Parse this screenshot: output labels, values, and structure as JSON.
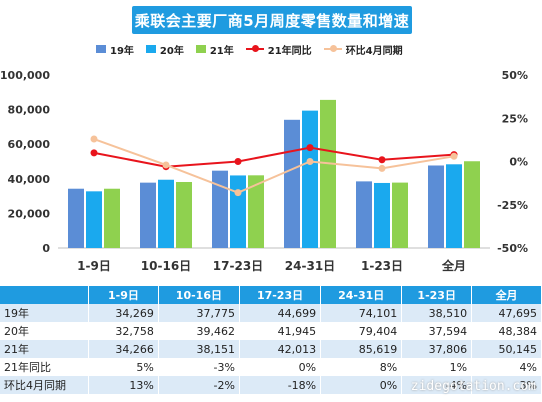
{
  "title": "乘联会主要厂商5月周度零售数量和增速",
  "legend": [
    {
      "label": "19年",
      "kind": "bar",
      "color": "#5b8dd6"
    },
    {
      "label": "20年",
      "kind": "bar",
      "color": "#1aa9ee"
    },
    {
      "label": "21年",
      "kind": "bar",
      "color": "#8fd14f"
    },
    {
      "label": "21年同比",
      "kind": "line",
      "color": "#e8141c"
    },
    {
      "label": "环比4月同期",
      "kind": "line",
      "color": "#f6c29a"
    }
  ],
  "chart_data": {
    "type": "bar",
    "title": "乘联会主要厂商5月周度零售数量和增速",
    "categories": [
      "1-9日",
      "10-16日",
      "17-23日",
      "24-31日",
      "1-23日",
      "全月"
    ],
    "y_left": {
      "min": 0,
      "max": 100000,
      "ticks": [
        "0",
        "20,000",
        "40,000",
        "60,000",
        "80,000",
        "100,000"
      ]
    },
    "y_right": {
      "min": -50,
      "max": 50,
      "ticks": [
        "-50%",
        "-25%",
        "0%",
        "25%",
        "50%"
      ]
    },
    "grid": false,
    "legend_position": "top",
    "series": [
      {
        "name": "19年",
        "kind": "bar",
        "axis": "left",
        "color": "#5b8dd6",
        "values": [
          34269,
          37775,
          44699,
          74101,
          38510,
          47695
        ]
      },
      {
        "name": "20年",
        "kind": "bar",
        "axis": "left",
        "color": "#1aa9ee",
        "values": [
          32758,
          39462,
          41945,
          79404,
          37594,
          48384
        ]
      },
      {
        "name": "21年",
        "kind": "bar",
        "axis": "left",
        "color": "#8fd14f",
        "values": [
          34266,
          38151,
          42013,
          85619,
          37806,
          50145
        ]
      },
      {
        "name": "21年同比",
        "kind": "line",
        "axis": "right",
        "color": "#e8141c",
        "values": [
          5,
          -3,
          0,
          8,
          1,
          4
        ]
      },
      {
        "name": "环比4月同期",
        "kind": "line",
        "axis": "right",
        "color": "#f6c29a",
        "values": [
          13,
          -2,
          -18,
          0,
          -4,
          3
        ]
      }
    ]
  },
  "table": {
    "columns": [
      "1-9日",
      "10-16日",
      "17-23日",
      "24-31日",
      "1-23日",
      "全月"
    ],
    "rows": [
      {
        "label": "19年",
        "cells": [
          "34,269",
          "37,775",
          "44,699",
          "74,101",
          "38,510",
          "47,695"
        ]
      },
      {
        "label": "20年",
        "cells": [
          "32,758",
          "39,462",
          "41,945",
          "79,404",
          "37,594",
          "48,384"
        ]
      },
      {
        "label": "21年",
        "cells": [
          "34,266",
          "38,151",
          "42,013",
          "85,619",
          "37,806",
          "50,145"
        ]
      },
      {
        "label": "21年同比",
        "cells": [
          "5%",
          "-3%",
          "0%",
          "8%",
          "1%",
          "4%"
        ]
      },
      {
        "label": "环比4月同期",
        "cells": [
          "13%",
          "-2%",
          "-18%",
          "0%",
          "-4%",
          "3%"
        ]
      }
    ]
  },
  "watermark": "zidegotation.com"
}
